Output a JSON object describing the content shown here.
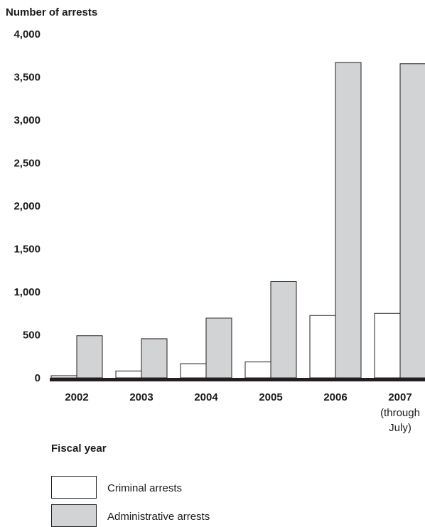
{
  "chart_data": {
    "type": "bar",
    "ylabel": "Number of arrests",
    "xlabel": "Fiscal year",
    "ylim": [
      0,
      4000
    ],
    "yticks": [
      "0",
      "500",
      "1,000",
      "1,500",
      "2,000",
      "2,500",
      "3,000",
      "3,500",
      "4,000"
    ],
    "ytick_values": [
      0,
      500,
      1000,
      1500,
      2000,
      2500,
      3000,
      3500,
      4000
    ],
    "categories": [
      {
        "label": "2002",
        "sub": []
      },
      {
        "label": "2003",
        "sub": []
      },
      {
        "label": "2004",
        "sub": []
      },
      {
        "label": "2005",
        "sub": []
      },
      {
        "label": "2006",
        "sub": []
      },
      {
        "label": "2007",
        "sub": [
          "(through",
          "July)"
        ]
      }
    ],
    "series": [
      {
        "name": "Criminal arrests",
        "color": "#ffffff",
        "values": [
          25,
          80,
          165,
          185,
          725,
          750
        ]
      },
      {
        "name": "Administrative arrests",
        "color": "#d1d3d4",
        "values": [
          490,
          455,
          695,
          1120,
          3670,
          3655
        ]
      }
    ],
    "grid": false,
    "legend_position": "bottom-left"
  }
}
